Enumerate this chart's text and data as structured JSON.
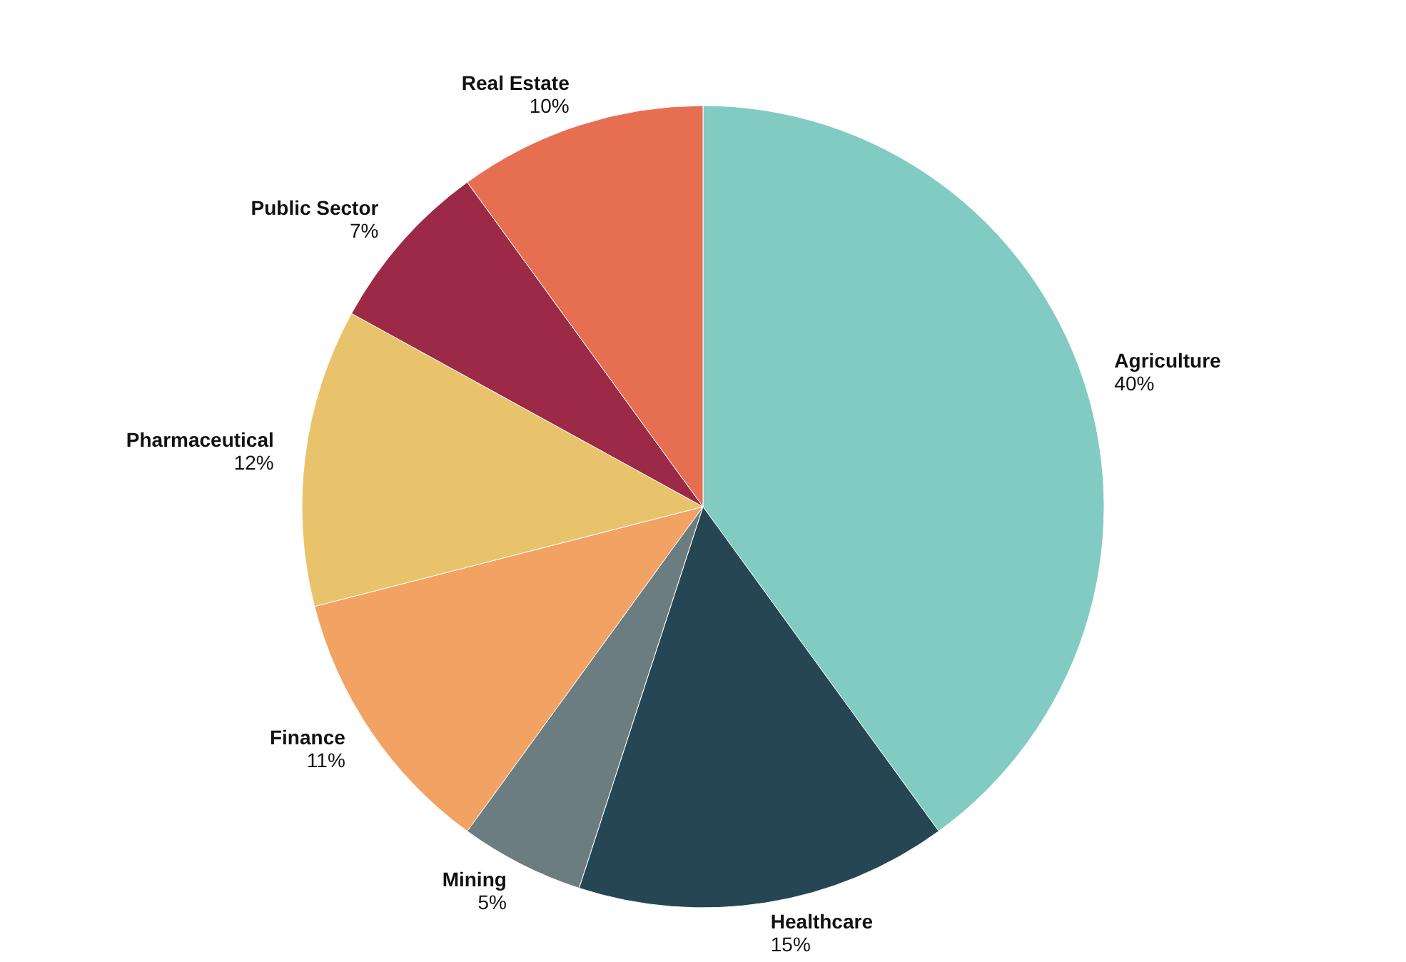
{
  "chart_data": {
    "type": "pie",
    "categories": [
      "Agriculture",
      "Healthcare",
      "Mining",
      "Finance",
      "Pharmaceutical",
      "Public Sector",
      "Real Estate"
    ],
    "values": [
      40,
      15,
      5,
      11,
      12,
      7,
      10
    ],
    "value_labels": [
      "40%",
      "15%",
      "5%",
      "11%",
      "12%",
      "7%",
      "10%"
    ],
    "colors": [
      "#81cbc3",
      "#264653",
      "#6c7d82",
      "#f2a262",
      "#e8c36b",
      "#9c2946",
      "#e76f51"
    ],
    "legend": false
  }
}
